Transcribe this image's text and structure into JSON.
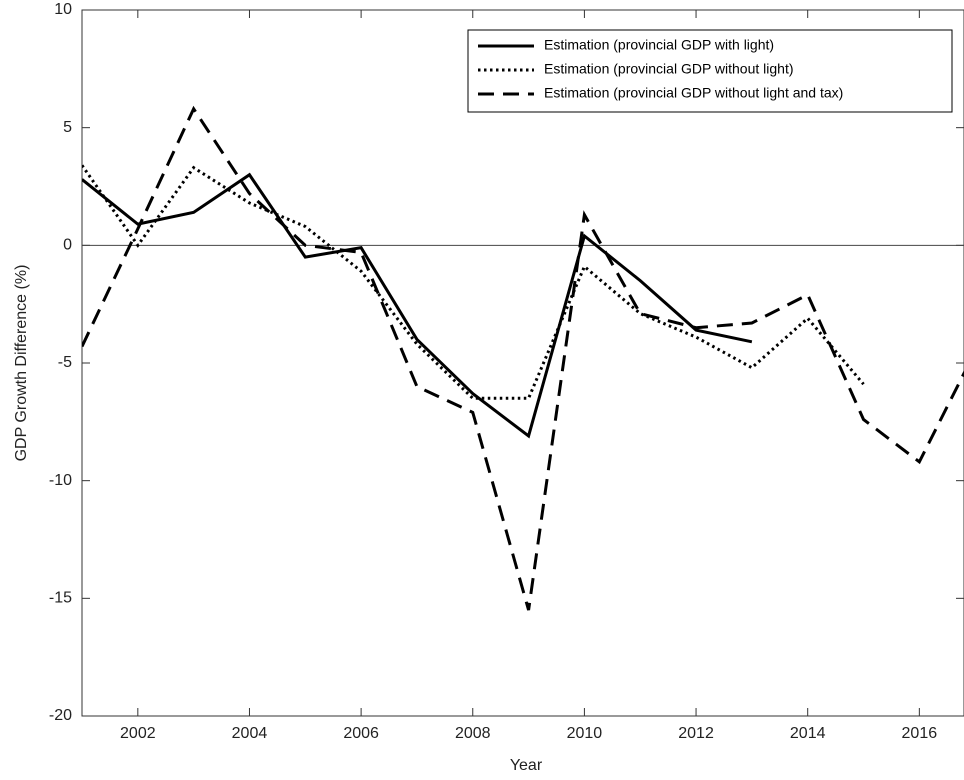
{
  "chart_data": {
    "type": "line",
    "x_label": "Year",
    "y_label": "GDP Growth Difference (%)",
    "x": [
      2001,
      2002,
      2003,
      2004,
      2005,
      2006,
      2007,
      2008,
      2009,
      2010,
      2011,
      2012,
      2013,
      2014,
      2015,
      2016,
      2017
    ],
    "series": [
      {
        "name": "Estimation (provincial GDP with light)",
        "color": "#000000",
        "dash": "solid",
        "values": [
          2.8,
          0.9,
          1.4,
          3.0,
          -0.5,
          -0.1,
          -4.0,
          -6.3,
          -8.1,
          0.4,
          -1.5,
          -3.6,
          -4.1,
          null,
          null,
          null,
          null
        ]
      },
      {
        "name": "Estimation (provincial GDP without light)",
        "color": "#000000",
        "dash": "dotted",
        "values": [
          3.4,
          0.0,
          3.3,
          1.8,
          0.8,
          -1.1,
          -4.2,
          -6.5,
          -6.5,
          -0.9,
          -2.9,
          -3.9,
          -5.2,
          -3.1,
          -5.9,
          null,
          null
        ]
      },
      {
        "name": "Estimation (provincial GDP without light and tax)",
        "color": "#000000",
        "dash": "dashed",
        "values": [
          -4.3,
          0.7,
          5.8,
          2.2,
          0.0,
          -0.3,
          -6.0,
          -7.1,
          -15.5,
          1.3,
          -2.9,
          -3.5,
          -3.3,
          -2.1,
          -7.4,
          -9.2,
          -4.5
        ]
      }
    ],
    "xlim": [
      2001,
      2016.8
    ],
    "xticks": [
      2002,
      2004,
      2006,
      2008,
      2010,
      2012,
      2014,
      2016
    ],
    "ylim": [
      -20,
      10
    ],
    "yticks": [
      -20,
      -15,
      -10,
      -5,
      0,
      5,
      10
    ],
    "zero_line": true,
    "legend": "top-right"
  }
}
